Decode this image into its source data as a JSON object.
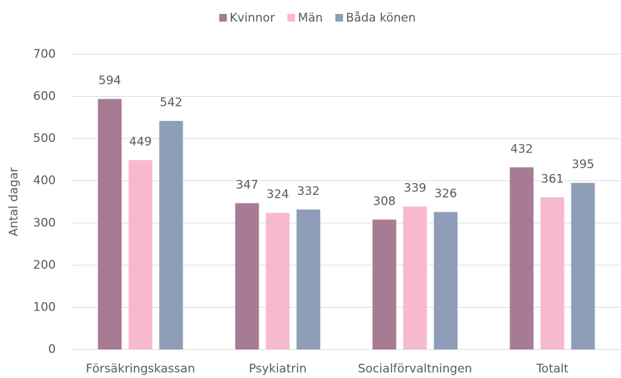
{
  "chart_data": {
    "type": "bar",
    "y_label": "Antal dagar",
    "categories": [
      "Försäkringskassan",
      "Psykiatrin",
      "Socialförvaltningen",
      "Totalt"
    ],
    "series": [
      {
        "name": "Kvinnor",
        "color": "#a67b93",
        "values": [
          594,
          347,
          308,
          432
        ]
      },
      {
        "name": "Män",
        "color": "#f7b9cf",
        "values": [
          449,
          324,
          339,
          361
        ]
      },
      {
        "name": "Båda könen",
        "color": "#8e9db8",
        "values": [
          542,
          332,
          326,
          395
        ]
      }
    ],
    "ylim": [
      0,
      700
    ],
    "yticks": [
      0,
      100,
      200,
      300,
      400,
      500,
      600,
      700
    ],
    "grid": true,
    "legend": "top"
  }
}
